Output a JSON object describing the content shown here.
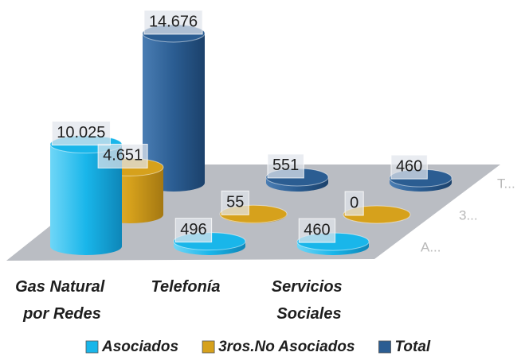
{
  "chart_data": {
    "type": "cylinder3d",
    "categories": [
      "Gas Natural por Redes",
      "Telefonía",
      "Servicios Sociales"
    ],
    "series": [
      {
        "name": "Asociados",
        "color": "#19b6ea",
        "values": [
          10025,
          496,
          460
        ],
        "value_labels": [
          "10.025",
          "496",
          "460"
        ]
      },
      {
        "name": "3ros.No Asociados",
        "color": "#d6a11c",
        "values": [
          4651,
          55,
          0
        ],
        "value_labels": [
          "4.651",
          "55",
          "0"
        ]
      },
      {
        "name": "Total",
        "color": "#2b5d92",
        "values": [
          14676,
          551,
          460
        ],
        "value_labels": [
          "14.676",
          "551",
          "460"
        ]
      }
    ],
    "depth_labels": [
      "A...",
      "3...",
      "T..."
    ],
    "legend": "bottom"
  }
}
